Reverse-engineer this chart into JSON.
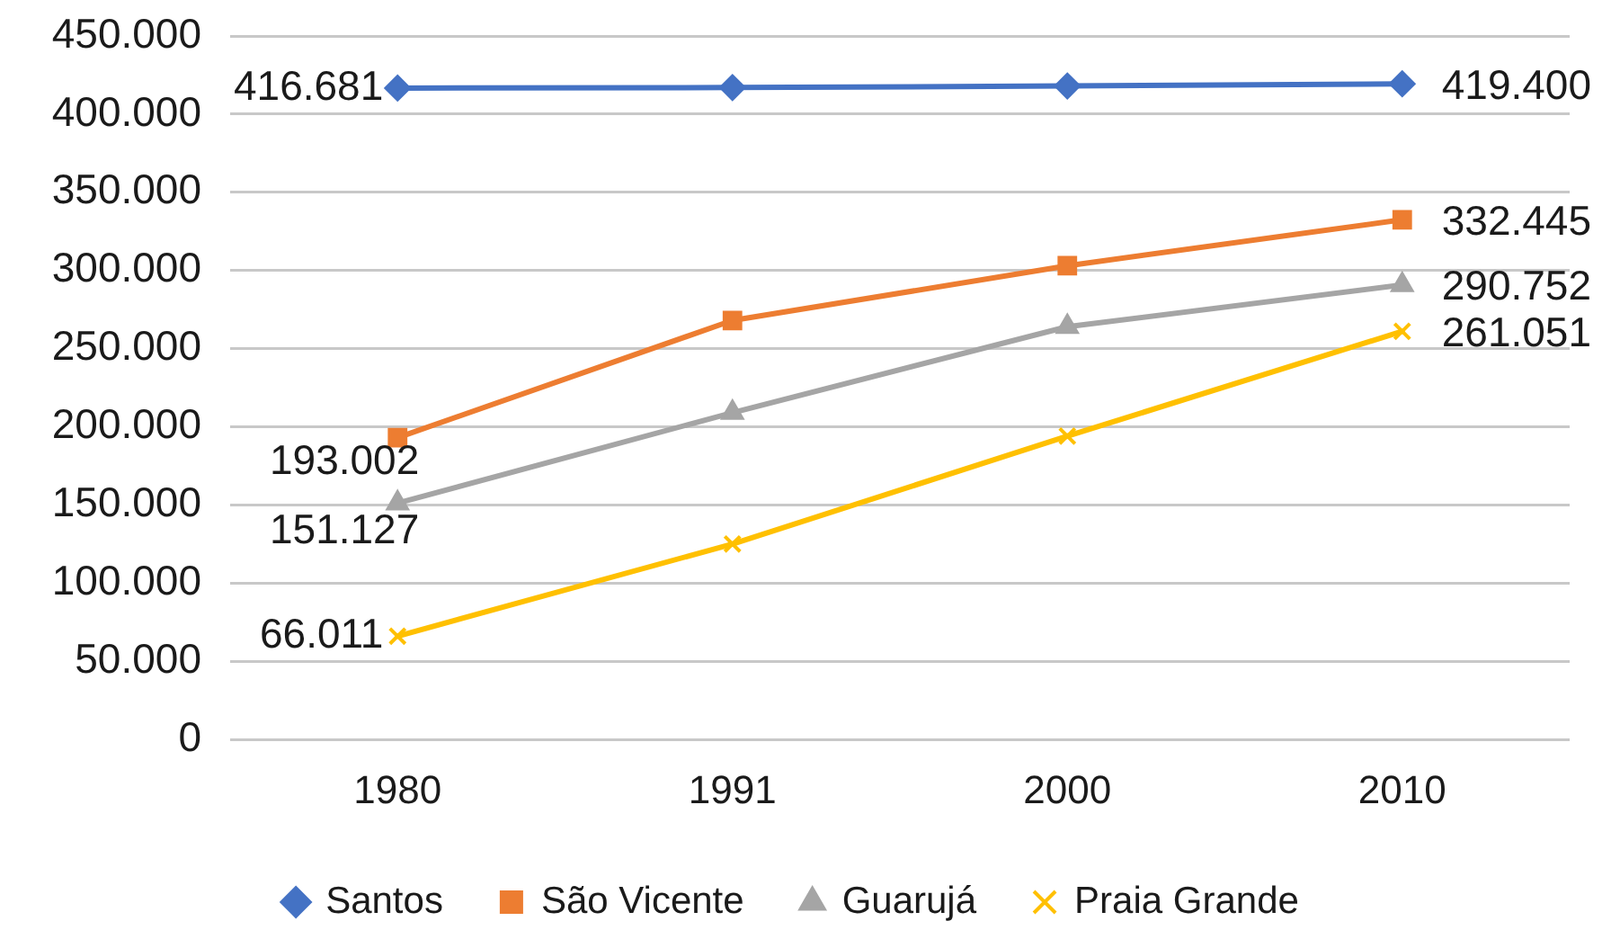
{
  "chart_data": {
    "type": "line",
    "categories": [
      "1980",
      "1991",
      "2000",
      "2010"
    ],
    "series": [
      {
        "name": "Santos",
        "color": "#4472c4",
        "marker": "diamond",
        "values": [
          416681,
          417000,
          418000,
          419400
        ],
        "value_labels": [
          "416.681",
          null,
          null,
          "419.400"
        ]
      },
      {
        "name": "São Vicente",
        "color": "#ed7d31",
        "marker": "square",
        "values": [
          193002,
          268000,
          303000,
          332445
        ],
        "value_labels": [
          "193.002",
          null,
          null,
          "332.445"
        ]
      },
      {
        "name": "Guarujá",
        "color": "#a5a5a5",
        "marker": "triangle",
        "values": [
          151127,
          209000,
          264000,
          290752
        ],
        "value_labels": [
          "151.127",
          null,
          null,
          "290.752"
        ]
      },
      {
        "name": "Praia Grande",
        "color": "#ffc000",
        "marker": "cross",
        "values": [
          66011,
          125000,
          194000,
          261051
        ],
        "value_labels": [
          "66.011",
          null,
          null,
          "261.051"
        ]
      }
    ],
    "ylim": [
      0,
      450000
    ],
    "yticks": [
      0,
      {
        "value": 50000,
        "label": "50.000"
      },
      {
        "value": 100000,
        "label": "100.000"
      },
      {
        "value": 150000,
        "label": "150.000"
      },
      {
        "value": 200000,
        "label": "200.000"
      },
      {
        "value": 250000,
        "label": "250.000"
      },
      {
        "value": 300000,
        "label": "300.000"
      },
      {
        "value": 350000,
        "label": "350.000"
      },
      {
        "value": 400000,
        "label": "400.000"
      },
      {
        "value": 450000,
        "label": "450.000"
      }
    ],
    "grid": "y",
    "legend": "bottom",
    "line_style": "solid"
  }
}
